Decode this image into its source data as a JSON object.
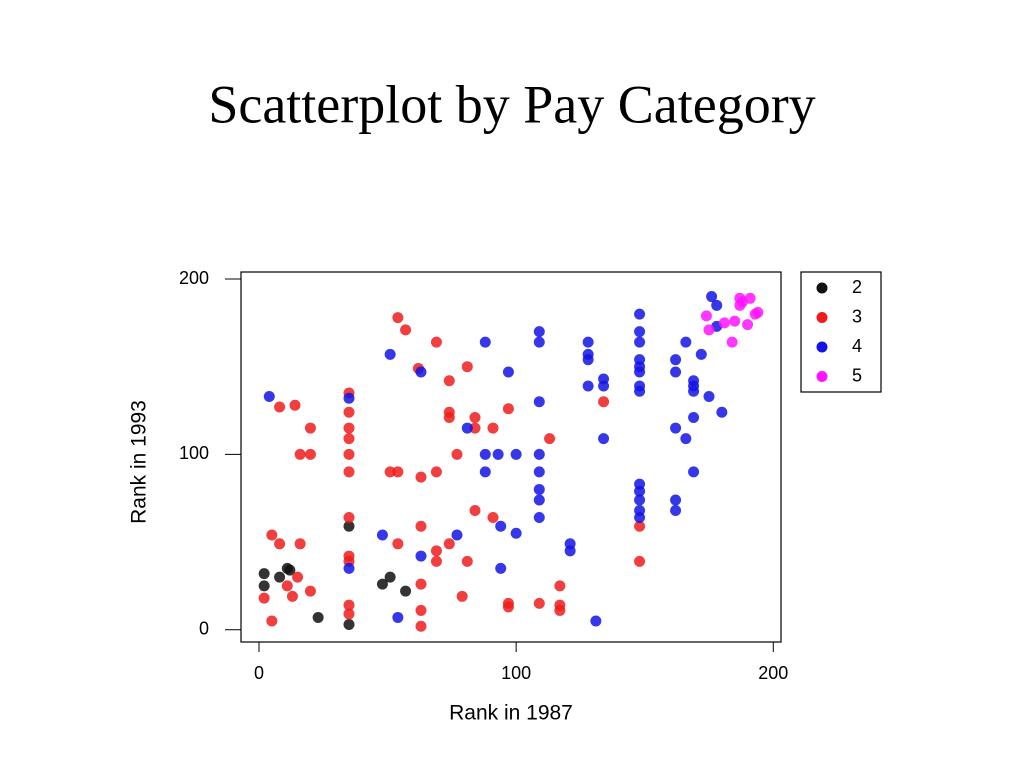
{
  "chart_data": {
    "type": "scatter",
    "title": "Scatterplot by Pay Category",
    "xlabel": "Rank in 1987",
    "ylabel": "Rank in 1993",
    "xlim": [
      -7,
      203
    ],
    "ylim": [
      -7,
      204
    ],
    "xticks": [
      0,
      100,
      200
    ],
    "yticks": [
      0,
      100,
      200
    ],
    "legend": "outside-top-right",
    "series": [
      {
        "name": "2",
        "color": "#111111",
        "x": [
          2,
          2,
          8,
          11,
          12,
          23,
          35,
          35,
          48,
          51,
          57
        ],
        "values": [
          32,
          25,
          30,
          35,
          34,
          7,
          59,
          3,
          26,
          30,
          22
        ]
      },
      {
        "name": "3",
        "color": "#ee1c1c",
        "x": [
          2,
          5,
          5,
          8,
          8,
          11,
          13,
          14,
          15,
          16,
          16,
          20,
          20,
          20,
          35,
          35,
          35,
          35,
          35,
          35,
          35,
          35,
          35,
          35,
          35,
          51,
          54,
          54,
          54,
          57,
          62,
          63,
          63,
          63,
          63,
          63,
          69,
          69,
          69,
          69,
          74,
          74,
          74,
          74,
          77,
          79,
          81,
          81,
          84,
          84,
          84,
          91,
          91,
          97,
          97,
          97,
          109,
          113,
          117,
          117,
          117,
          134,
          148,
          148
        ],
        "values": [
          18,
          54,
          5,
          127,
          49,
          25,
          19,
          128,
          30,
          100,
          49,
          115,
          100,
          22,
          135,
          124,
          115,
          109,
          100,
          90,
          64,
          42,
          39,
          14,
          9,
          90,
          178,
          90,
          49,
          171,
          149,
          87,
          59,
          26,
          11,
          2,
          164,
          90,
          45,
          39,
          142,
          124,
          121,
          49,
          100,
          19,
          150,
          39,
          121,
          115,
          68,
          115,
          64,
          126,
          15,
          13,
          15,
          109,
          25,
          14,
          11,
          130,
          59,
          39
        ]
      },
      {
        "name": "4",
        "color": "#1414e6",
        "x": [
          4,
          35,
          35,
          48,
          51,
          54,
          63,
          63,
          77,
          81,
          88,
          88,
          88,
          93,
          94,
          94,
          97,
          100,
          100,
          109,
          109,
          109,
          109,
          109,
          109,
          109,
          109,
          121,
          121,
          128,
          128,
          128,
          128,
          131,
          134,
          134,
          134,
          148,
          148,
          148,
          148,
          148,
          148,
          148,
          148,
          148,
          148,
          148,
          148,
          148,
          162,
          162,
          162,
          162,
          162,
          166,
          166,
          169,
          169,
          169,
          169,
          169,
          172,
          175,
          176,
          178,
          178,
          180
        ],
        "values": [
          133,
          132,
          35,
          54,
          157,
          7,
          147,
          42,
          54,
          115,
          164,
          100,
          90,
          100,
          35,
          59,
          147,
          100,
          55,
          170,
          164,
          130,
          100,
          90,
          80,
          74,
          64,
          49,
          45,
          164,
          157,
          154,
          139,
          5,
          143,
          139,
          109,
          180,
          170,
          164,
          154,
          150,
          147,
          139,
          136,
          83,
          79,
          74,
          68,
          64,
          154,
          147,
          115,
          74,
          68,
          164,
          109,
          142,
          139,
          136,
          121,
          90,
          157,
          133,
          190,
          185,
          173,
          124
        ]
      },
      {
        "name": "5",
        "color": "#ff14ff",
        "x": [
          174,
          175,
          181,
          184,
          185,
          187,
          187,
          188,
          190,
          191,
          193,
          194
        ],
        "values": [
          179,
          171,
          175,
          164,
          176,
          189,
          185,
          187,
          174,
          189,
          180,
          181
        ]
      }
    ]
  }
}
